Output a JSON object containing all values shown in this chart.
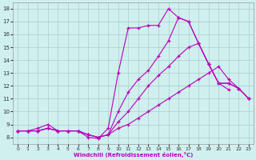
{
  "xlabel": "Windchill (Refroidissement éolien,°C)",
  "background_color": "#cff0ee",
  "line_color": "#bb00bb",
  "grid_color": "#aacccc",
  "xlim": [
    -0.5,
    23.5
  ],
  "ylim": [
    7.5,
    18.5
  ],
  "xticks": [
    0,
    1,
    2,
    3,
    4,
    5,
    6,
    7,
    8,
    9,
    10,
    11,
    12,
    13,
    14,
    15,
    16,
    17,
    18,
    19,
    20,
    21,
    22,
    23
  ],
  "yticks": [
    8,
    9,
    10,
    11,
    12,
    13,
    14,
    15,
    16,
    17,
    18
  ],
  "lines": [
    {
      "x": [
        0,
        1,
        2,
        3,
        4,
        5,
        6,
        7,
        8,
        9,
        10,
        11,
        12,
        13,
        14,
        15,
        16,
        17,
        18,
        19,
        20,
        21
      ],
      "y": [
        8.5,
        8.5,
        8.7,
        9.0,
        8.5,
        8.5,
        8.5,
        8.0,
        7.9,
        8.7,
        13.0,
        16.5,
        16.5,
        16.7,
        16.7,
        18.0,
        17.3,
        17.0,
        15.3,
        13.7,
        12.2,
        11.7
      ]
    },
    {
      "x": [
        0,
        1,
        2,
        3,
        4,
        5,
        6,
        7,
        8,
        9,
        10,
        11,
        12,
        13,
        14,
        15,
        16,
        17,
        18,
        19,
        20,
        21,
        22,
        23
      ],
      "y": [
        8.5,
        8.5,
        8.5,
        8.7,
        8.5,
        8.5,
        8.5,
        8.2,
        8.0,
        8.2,
        10.0,
        11.5,
        12.5,
        13.2,
        14.3,
        15.5,
        17.3,
        17.0,
        15.3,
        13.7,
        12.2,
        12.2,
        11.8,
        11.0
      ]
    },
    {
      "x": [
        0,
        1,
        2,
        3,
        4,
        5,
        6,
        7,
        8,
        9,
        10,
        11,
        12,
        13,
        14,
        15,
        16,
        17,
        18,
        19,
        20,
        21,
        22,
        23
      ],
      "y": [
        8.5,
        8.5,
        8.5,
        8.7,
        8.5,
        8.5,
        8.5,
        8.2,
        8.0,
        8.2,
        9.2,
        10.0,
        11.0,
        12.0,
        12.8,
        13.5,
        14.3,
        15.0,
        15.3,
        13.7,
        12.2,
        12.2,
        11.8,
        11.0
      ]
    },
    {
      "x": [
        0,
        1,
        2,
        3,
        4,
        5,
        6,
        7,
        8,
        9,
        10,
        11,
        12,
        13,
        14,
        15,
        16,
        17,
        18,
        19,
        20,
        21,
        22,
        23
      ],
      "y": [
        8.5,
        8.5,
        8.5,
        8.7,
        8.5,
        8.5,
        8.5,
        8.2,
        8.0,
        8.2,
        8.7,
        9.0,
        9.5,
        10.0,
        10.5,
        11.0,
        11.5,
        12.0,
        12.5,
        13.0,
        13.5,
        12.5,
        11.8,
        11.0
      ]
    }
  ]
}
